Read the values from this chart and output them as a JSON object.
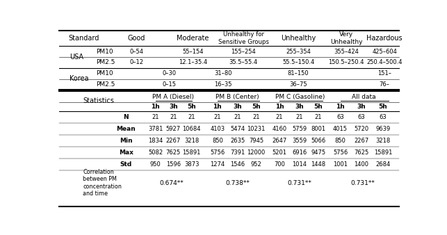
{
  "fig_width": 6.43,
  "fig_height": 3.38,
  "dpi": 100,
  "bg_color": "#ffffff",
  "header_cols": [
    "Standard",
    "Good",
    "Moderate",
    "Unhealthy for\nSensitive Groups",
    "Unhealthy",
    "Very\nUnhealthy",
    "Hazardous"
  ],
  "usa_pm10": [
    "0–54",
    "55–154",
    "155–254",
    "255–354",
    "355–424",
    "425–604"
  ],
  "usa_pm25": [
    "0–12",
    "12.1–35.4",
    "35.5–55.4",
    "55.5–150.4",
    "150.5–250.4",
    "250.4–500.4"
  ],
  "kor_pm10": [
    "0–30",
    "31–80",
    "81–150",
    "151–"
  ],
  "kor_pm25": [
    "0–15",
    "16–35",
    "36–75",
    "76–"
  ],
  "stat_groups": [
    "PM A (Diesel)",
    "PM B (Center)",
    "PM C (Gasoline)",
    "All data"
  ],
  "stat_subheader": [
    "1h",
    "3h",
    "5h",
    "1h",
    "3h",
    "5h",
    "1h",
    "3h",
    "5h",
    "1h",
    "3h",
    "5h"
  ],
  "stat_data_N": [
    21,
    21,
    21,
    21,
    21,
    21,
    21,
    21,
    21,
    63,
    63,
    63
  ],
  "stat_data_Mean": [
    3781,
    5927,
    10684,
    4103,
    5474,
    10231,
    4160,
    5759,
    8001,
    4015,
    5720,
    9639
  ],
  "stat_data_Min": [
    1834,
    2267,
    3218,
    850,
    2635,
    7945,
    2647,
    3559,
    5066,
    850,
    2267,
    3218
  ],
  "stat_data_Max": [
    5082,
    7625,
    15891,
    5756,
    7391,
    12000,
    5201,
    6916,
    9475,
    5756,
    7625,
    15891
  ],
  "stat_data_Std": [
    950,
    1596,
    3873,
    1274,
    1546,
    952,
    700,
    1014,
    1448,
    1001,
    1400,
    2684
  ],
  "corr_values": [
    "0.674**",
    "0.738**",
    "0.731**",
    "0.731**"
  ],
  "corr_label": "Correlation\nbetween PM\nconcentration\nand time"
}
